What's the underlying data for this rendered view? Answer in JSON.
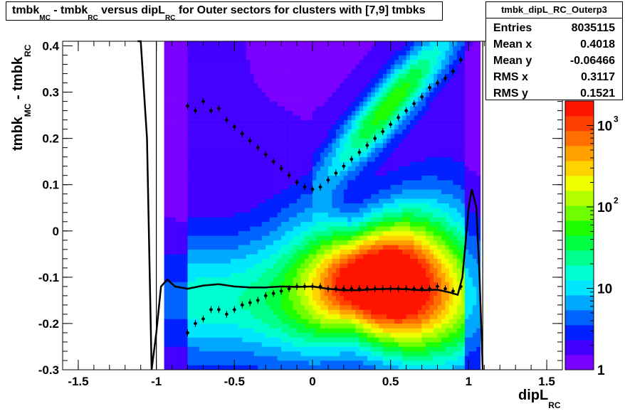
{
  "chart_data": {
    "type": "heatmap",
    "title_parts": [
      "tmbk",
      "MC",
      " - tmbk",
      "RC",
      " versus dipL",
      "RC",
      " for Outer sectors for clusters with [7,9] tmbks"
    ],
    "xlabel_main": "dipL",
    "xlabel_sub": "RC",
    "ylabel_parts": [
      "tmbk",
      "MC",
      " - tmbk",
      "RC"
    ],
    "xlim": [
      -1.6,
      1.6
    ],
    "ylim": [
      -0.3,
      0.41
    ],
    "x_ticks": [
      -1.5,
      -1,
      -0.5,
      0,
      0.5,
      1,
      1.5
    ],
    "x_tick_labels": [
      "-1.5",
      "-1",
      "-0.5",
      "0",
      "0.5",
      "1",
      "1.5"
    ],
    "y_ticks": [
      -0.3,
      -0.2,
      -0.1,
      0,
      0.1,
      0.2,
      0.3,
      0.4
    ],
    "y_tick_labels": [
      "-0.3",
      "-0.2",
      "-0.1",
      "0",
      "0.1",
      "0.2",
      "0.3",
      "0.4"
    ],
    "colorbar": {
      "scale": "log",
      "range": [
        1,
        2000
      ],
      "labels": [
        {
          "value": 1,
          "base": "1",
          "exp": ""
        },
        {
          "value": 10,
          "base": "10",
          "exp": ""
        },
        {
          "value": 100,
          "base": "10",
          "exp": "2"
        },
        {
          "value": 1000,
          "base": "10",
          "exp": "3"
        }
      ],
      "colors": [
        "#7a00ff",
        "#4400ff",
        "#0020ff",
        "#0064ff",
        "#00a8ff",
        "#00e6ff",
        "#00ffd0",
        "#00ff8c",
        "#00ff40",
        "#20ff00",
        "#70ff00",
        "#b4ff00",
        "#f0ff00",
        "#ffd200",
        "#ffa000",
        "#ff7000",
        "#ff4000",
        "#ff1400"
      ]
    },
    "stats": {
      "name": "tmbk_dipL_RC_Outerp3",
      "rows": [
        {
          "label": "Entries",
          "value": "8035115"
        },
        {
          "label": "Mean x",
          "value": "0.4018"
        },
        {
          "label": "Mean y",
          "value": "-0.06466"
        },
        {
          "label": "RMS x",
          "value": "0.3117"
        },
        {
          "label": "RMS y",
          "value": "0.1521"
        }
      ]
    },
    "profile_upper": [
      [
        -0.8,
        0.27
      ],
      [
        -0.75,
        0.26
      ],
      [
        -0.7,
        0.28
      ],
      [
        -0.65,
        0.26
      ],
      [
        -0.6,
        0.265
      ],
      [
        -0.55,
        0.24
      ],
      [
        -0.5,
        0.225
      ],
      [
        -0.45,
        0.21
      ],
      [
        -0.4,
        0.195
      ],
      [
        -0.35,
        0.18
      ],
      [
        -0.3,
        0.165
      ],
      [
        -0.25,
        0.15
      ],
      [
        -0.2,
        0.135
      ],
      [
        -0.15,
        0.12
      ],
      [
        -0.1,
        0.105
      ],
      [
        -0.05,
        0.095
      ],
      [
        0.0,
        0.09
      ],
      [
        0.05,
        0.095
      ],
      [
        0.1,
        0.11
      ],
      [
        0.15,
        0.125
      ],
      [
        0.2,
        0.14
      ],
      [
        0.25,
        0.155
      ],
      [
        0.3,
        0.17
      ],
      [
        0.35,
        0.185
      ],
      [
        0.4,
        0.2
      ],
      [
        0.45,
        0.215
      ],
      [
        0.5,
        0.23
      ],
      [
        0.55,
        0.245
      ],
      [
        0.6,
        0.26
      ],
      [
        0.65,
        0.275
      ],
      [
        0.7,
        0.29
      ],
      [
        0.75,
        0.31
      ],
      [
        0.8,
        0.32
      ],
      [
        0.85,
        0.33
      ],
      [
        0.9,
        0.345
      ],
      [
        0.95,
        0.37
      ]
    ],
    "profile_lower": [
      [
        -0.8,
        -0.22
      ],
      [
        -0.75,
        -0.2
      ],
      [
        -0.7,
        -0.19
      ],
      [
        -0.65,
        -0.17
      ],
      [
        -0.6,
        -0.17
      ],
      [
        -0.55,
        -0.18
      ],
      [
        -0.5,
        -0.17
      ],
      [
        -0.45,
        -0.16
      ],
      [
        -0.4,
        -0.155
      ],
      [
        -0.35,
        -0.15
      ],
      [
        -0.3,
        -0.14
      ],
      [
        -0.25,
        -0.135
      ],
      [
        -0.2,
        -0.13
      ],
      [
        -0.15,
        -0.125
      ],
      [
        -0.1,
        -0.12
      ],
      [
        -0.05,
        -0.12
      ],
      [
        0.0,
        -0.12
      ],
      [
        0.05,
        -0.12
      ],
      [
        0.1,
        -0.125
      ],
      [
        0.15,
        -0.125
      ],
      [
        0.2,
        -0.125
      ],
      [
        0.25,
        -0.125
      ],
      [
        0.3,
        -0.125
      ],
      [
        0.35,
        -0.125
      ],
      [
        0.4,
        -0.125
      ],
      [
        0.45,
        -0.125
      ],
      [
        0.5,
        -0.125
      ],
      [
        0.55,
        -0.125
      ],
      [
        0.6,
        -0.125
      ],
      [
        0.65,
        -0.125
      ],
      [
        0.7,
        -0.125
      ],
      [
        0.75,
        -0.125
      ],
      [
        0.8,
        -0.12
      ],
      [
        0.85,
        -0.125
      ],
      [
        0.9,
        -0.13
      ],
      [
        0.95,
        -0.12
      ]
    ],
    "fit_curve": [
      [
        -1.12,
        0.41
      ],
      [
        -1.1,
        0.41
      ],
      [
        -1.06,
        0.2
      ],
      [
        -1.03,
        -0.3
      ],
      [
        -1.0,
        -0.22
      ],
      [
        -0.97,
        -0.12
      ],
      [
        -0.93,
        -0.105
      ],
      [
        -0.88,
        -0.12
      ],
      [
        -0.8,
        -0.125
      ],
      [
        -0.7,
        -0.118
      ],
      [
        -0.6,
        -0.115
      ],
      [
        -0.5,
        -0.12
      ],
      [
        -0.4,
        -0.122
      ],
      [
        -0.3,
        -0.122
      ],
      [
        -0.2,
        -0.12
      ],
      [
        -0.1,
        -0.121
      ],
      [
        0.0,
        -0.12
      ],
      [
        0.1,
        -0.125
      ],
      [
        0.2,
        -0.128
      ],
      [
        0.3,
        -0.128
      ],
      [
        0.4,
        -0.126
      ],
      [
        0.5,
        -0.125
      ],
      [
        0.6,
        -0.126
      ],
      [
        0.7,
        -0.128
      ],
      [
        0.8,
        -0.127
      ],
      [
        0.88,
        -0.133
      ],
      [
        0.93,
        -0.138
      ],
      [
        0.96,
        -0.1
      ],
      [
        1.0,
        0.05
      ],
      [
        1.02,
        0.09
      ],
      [
        1.05,
        0.05
      ],
      [
        1.07,
        -0.1
      ],
      [
        1.09,
        -0.3
      ]
    ]
  }
}
